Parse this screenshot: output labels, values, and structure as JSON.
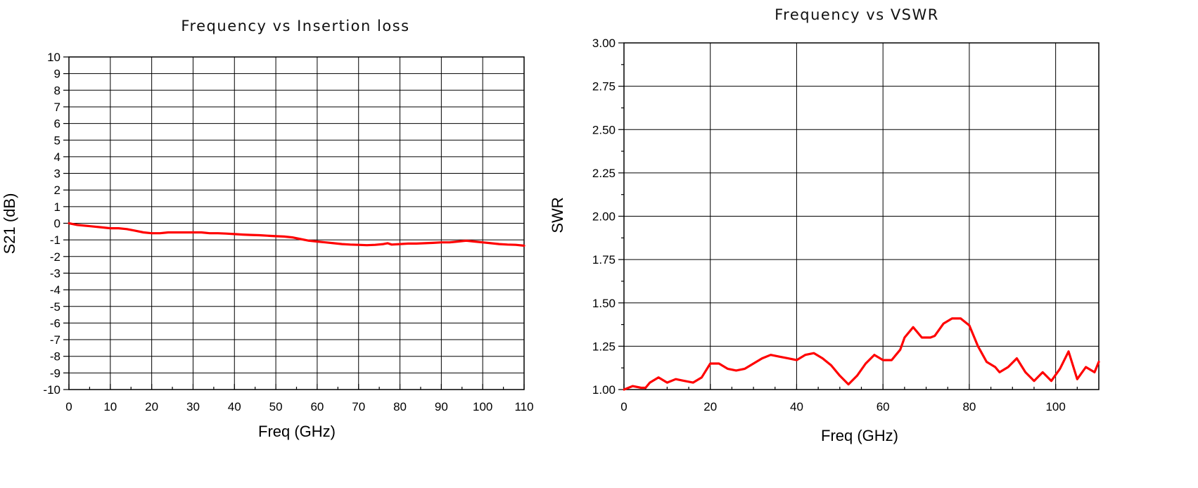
{
  "chart_data": [
    {
      "type": "line",
      "title": "Frequency vs Insertion loss",
      "xlabel": "Freq (GHz)",
      "ylabel": "S21 (dB)",
      "xlim": [
        0,
        110
      ],
      "ylim": [
        -10,
        10
      ],
      "xticks": [
        0,
        10,
        20,
        30,
        40,
        50,
        60,
        70,
        80,
        90,
        100,
        110
      ],
      "yticks": [
        10,
        9,
        8,
        7,
        6,
        5,
        4,
        3,
        2,
        1,
        0,
        -1,
        -2,
        -3,
        -4,
        -5,
        -6,
        -7,
        -8,
        -9,
        -10
      ],
      "grid": true,
      "series_color": "#ff0000",
      "series": [
        {
          "x": [
            0,
            2,
            4,
            6,
            8,
            10,
            12,
            14,
            16,
            18,
            20,
            22,
            24,
            26,
            28,
            30,
            32,
            34,
            36,
            38,
            40,
            42,
            44,
            46,
            48,
            50,
            52,
            54,
            56,
            58,
            60,
            62,
            64,
            66,
            68,
            70,
            72,
            74,
            76,
            77,
            78,
            80,
            82,
            84,
            86,
            88,
            90,
            92,
            94,
            96,
            98,
            100,
            102,
            104,
            106,
            108,
            110
          ],
          "y": [
            0,
            -0.1,
            -0.15,
            -0.2,
            -0.25,
            -0.3,
            -0.3,
            -0.35,
            -0.45,
            -0.55,
            -0.6,
            -0.6,
            -0.55,
            -0.55,
            -0.55,
            -0.55,
            -0.55,
            -0.6,
            -0.6,
            -0.62,
            -0.65,
            -0.68,
            -0.7,
            -0.72,
            -0.75,
            -0.78,
            -0.8,
            -0.85,
            -0.95,
            -1.05,
            -1.1,
            -1.15,
            -1.2,
            -1.25,
            -1.28,
            -1.3,
            -1.32,
            -1.3,
            -1.25,
            -1.2,
            -1.28,
            -1.25,
            -1.22,
            -1.22,
            -1.2,
            -1.18,
            -1.15,
            -1.15,
            -1.1,
            -1.05,
            -1.1,
            -1.15,
            -1.2,
            -1.25,
            -1.28,
            -1.3,
            -1.35
          ]
        }
      ]
    },
    {
      "type": "line",
      "title": "Frequency vs VSWR",
      "xlabel": "Freq (GHz)",
      "ylabel": "SWR",
      "xlim": [
        0,
        110
      ],
      "ylim": [
        1.0,
        3.0
      ],
      "xticks": [
        0,
        20,
        40,
        60,
        80,
        100
      ],
      "yticks": [
        "3.00",
        "2.75",
        "2.50",
        "2.25",
        "2.00",
        "1.75",
        "1.50",
        "1.25",
        "1.00"
      ],
      "grid": true,
      "series_color": "#ff0000",
      "series": [
        {
          "x": [
            0,
            2,
            4,
            5,
            6,
            8,
            10,
            12,
            14,
            16,
            18,
            20,
            22,
            24,
            26,
            28,
            30,
            32,
            34,
            36,
            38,
            40,
            42,
            44,
            46,
            48,
            50,
            52,
            54,
            56,
            58,
            60,
            62,
            64,
            65,
            67,
            69,
            71,
            72,
            74,
            76,
            78,
            80,
            82,
            84,
            86,
            87,
            89,
            91,
            93,
            95,
            97,
            99,
            101,
            103,
            105,
            107,
            109,
            110
          ],
          "y": [
            1.0,
            1.02,
            1.01,
            1.01,
            1.04,
            1.07,
            1.04,
            1.06,
            1.05,
            1.04,
            1.07,
            1.15,
            1.15,
            1.12,
            1.11,
            1.12,
            1.15,
            1.18,
            1.2,
            1.19,
            1.18,
            1.17,
            1.2,
            1.21,
            1.18,
            1.14,
            1.08,
            1.03,
            1.08,
            1.15,
            1.2,
            1.17,
            1.17,
            1.23,
            1.3,
            1.36,
            1.3,
            1.3,
            1.31,
            1.38,
            1.41,
            1.41,
            1.37,
            1.25,
            1.16,
            1.13,
            1.1,
            1.13,
            1.18,
            1.1,
            1.05,
            1.1,
            1.05,
            1.12,
            1.22,
            1.06,
            1.13,
            1.1,
            1.16
          ]
        }
      ]
    }
  ]
}
